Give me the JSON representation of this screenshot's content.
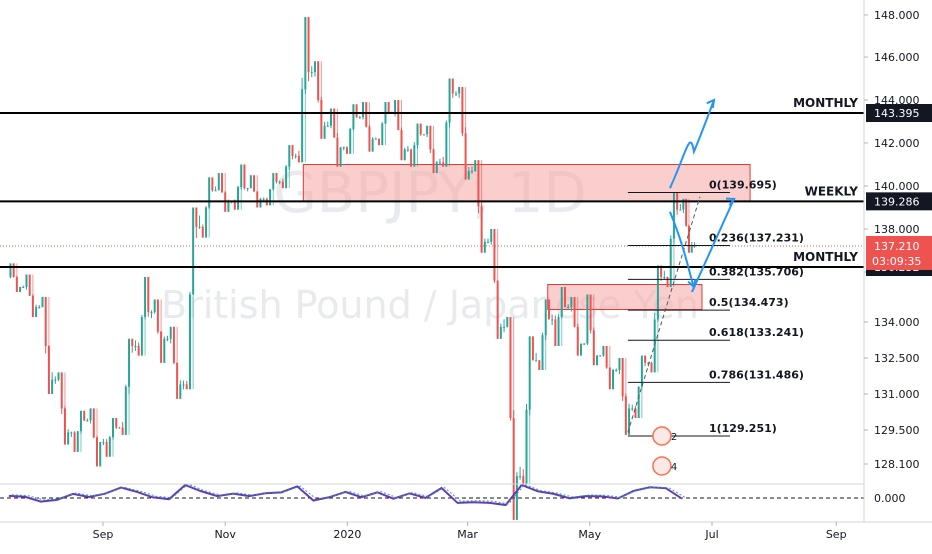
{
  "watermark": {
    "symbol": "GBPJPY, 1D",
    "name": "British Pound / Japanese Yen"
  },
  "chart_data": {
    "type": "candlestick",
    "price_axis": {
      "ticks": [
        "148.000",
        "146.000",
        "144.000",
        "142.000",
        "140.000",
        "138.000",
        "136.000",
        "134.000",
        "132.500",
        "131.000",
        "129.500",
        "128.100"
      ],
      "tick_values": [
        148.0,
        146.0,
        144.0,
        142.0,
        140.0,
        138.0,
        136.0,
        134.0,
        132.5,
        131.0,
        129.5,
        128.1
      ]
    },
    "time_axis": {
      "labels": [
        "Sep",
        "Nov",
        "2020",
        "Mar",
        "May",
        "Jul",
        "Sep"
      ],
      "label_dates": [
        "2019-09-01",
        "2019-11-01",
        "2020-01-01",
        "2020-03-01",
        "2020-05-01",
        "2020-07-01",
        "2020-09-01"
      ]
    },
    "price_badges": [
      {
        "text": "143.395",
        "value": 143.395,
        "style": "dark"
      },
      {
        "text": "139.286",
        "value": 139.286,
        "style": "dark"
      },
      {
        "text": "136.232",
        "value": 136.232,
        "style": "dark"
      }
    ],
    "current_price": {
      "text": "137.210",
      "value": 137.21,
      "countdown": "03:09:35",
      "color": "#ef5350"
    },
    "horizontal_levels": [
      {
        "label": "MONTHLY",
        "value": 143.395
      },
      {
        "label": "WEEKLY",
        "value": 139.286
      },
      {
        "label": "MONTHLY",
        "value": 136.232
      }
    ],
    "zones": [
      {
        "from": 139.3,
        "to": 141.0,
        "start_date": "2019-12-10",
        "end_date": "2020-07-20"
      },
      {
        "from": 134.5,
        "to": 135.5,
        "start_date": "2020-04-10",
        "end_date": "2020-06-26"
      }
    ],
    "fibonacci": {
      "start_date": "2020-05-20",
      "end_date": "2020-06-25",
      "levels": [
        {
          "label": "0(139.695)",
          "value": 139.695
        },
        {
          "label": "0.236(137.231)",
          "value": 137.231
        },
        {
          "label": "0.382(135.706)",
          "value": 135.706
        },
        {
          "label": "0.5(134.473)",
          "value": 134.473
        },
        {
          "label": "0.618(133.241)",
          "value": 133.241
        },
        {
          "label": "0.786(131.486)",
          "value": 131.486
        },
        {
          "label": "1(129.251)",
          "value": 129.251
        }
      ]
    },
    "trendline": {
      "from_date": "2020-05-20",
      "from_value": 129.4,
      "to_date": "2020-06-25",
      "to_value": 139.5
    },
    "projection_paths_count": 2,
    "event_markers": [
      {
        "label": "2",
        "date": "2020-06-06"
      },
      {
        "label": "4",
        "date": "2020-06-06"
      }
    ],
    "oscillator": {
      "tick": "0.000",
      "zero_line": "dashed"
    },
    "colors": {
      "up": "#26a69a",
      "down": "#ef5350",
      "level_line": "#000000",
      "zone_fill": "#f8a5a5",
      "zone_border": "#e53935",
      "arrow": "#2196f3",
      "badge_dark": "#131722"
    },
    "candles": [
      {
        "d": "2019-07-16",
        "o": 135.8,
        "h": 136.4,
        "l": 135.2,
        "c": 135.4
      },
      {
        "d": "2019-07-24",
        "o": 135.4,
        "h": 135.9,
        "l": 134.2,
        "c": 134.6
      },
      {
        "d": "2019-08-01",
        "o": 134.6,
        "h": 135.0,
        "l": 131.0,
        "c": 131.6
      },
      {
        "d": "2019-08-09",
        "o": 131.6,
        "h": 131.9,
        "l": 128.9,
        "c": 129.4
      },
      {
        "d": "2019-08-17",
        "o": 129.4,
        "h": 130.3,
        "l": 128.6,
        "c": 129.9
      },
      {
        "d": "2019-08-25",
        "o": 129.9,
        "h": 130.4,
        "l": 128.0,
        "c": 129.0
      },
      {
        "d": "2019-09-02",
        "o": 129.0,
        "h": 130.0,
        "l": 128.4,
        "c": 129.6
      },
      {
        "d": "2019-09-10",
        "o": 129.6,
        "h": 133.3,
        "l": 129.3,
        "c": 133.0
      },
      {
        "d": "2019-09-18",
        "o": 133.0,
        "h": 135.8,
        "l": 132.6,
        "c": 134.4
      },
      {
        "d": "2019-09-26",
        "o": 134.4,
        "h": 134.9,
        "l": 132.3,
        "c": 133.3
      },
      {
        "d": "2019-10-04",
        "o": 133.3,
        "h": 133.8,
        "l": 130.8,
        "c": 131.4
      },
      {
        "d": "2019-10-12",
        "o": 131.4,
        "h": 139.0,
        "l": 131.2,
        "c": 138.1
      },
      {
        "d": "2019-10-20",
        "o": 138.1,
        "h": 140.4,
        "l": 137.6,
        "c": 139.8
      },
      {
        "d": "2019-10-28",
        "o": 139.8,
        "h": 140.6,
        "l": 138.8,
        "c": 139.3
      },
      {
        "d": "2019-11-05",
        "o": 139.3,
        "h": 141.0,
        "l": 138.9,
        "c": 139.9
      },
      {
        "d": "2019-11-13",
        "o": 139.9,
        "h": 140.5,
        "l": 139.0,
        "c": 139.4
      },
      {
        "d": "2019-11-21",
        "o": 139.4,
        "h": 140.6,
        "l": 139.1,
        "c": 140.2
      },
      {
        "d": "2019-11-29",
        "o": 140.2,
        "h": 141.9,
        "l": 139.9,
        "c": 141.4
      },
      {
        "d": "2019-12-07",
        "o": 141.4,
        "h": 147.9,
        "l": 141.1,
        "c": 145.3
      },
      {
        "d": "2019-12-15",
        "o": 145.3,
        "h": 145.8,
        "l": 142.2,
        "c": 142.8
      },
      {
        "d": "2019-12-23",
        "o": 142.8,
        "h": 143.6,
        "l": 140.9,
        "c": 141.8
      },
      {
        "d": "2019-12-31",
        "o": 141.8,
        "h": 143.8,
        "l": 141.5,
        "c": 143.2
      },
      {
        "d": "2020-01-08",
        "o": 143.2,
        "h": 143.9,
        "l": 141.6,
        "c": 142.2
      },
      {
        "d": "2020-01-16",
        "o": 142.2,
        "h": 143.9,
        "l": 141.9,
        "c": 143.4
      },
      {
        "d": "2020-01-24",
        "o": 143.4,
        "h": 144.0,
        "l": 141.2,
        "c": 141.7
      },
      {
        "d": "2020-02-01",
        "o": 141.7,
        "h": 142.9,
        "l": 140.9,
        "c": 142.4
      },
      {
        "d": "2020-02-09",
        "o": 142.4,
        "h": 142.8,
        "l": 140.6,
        "c": 141.1
      },
      {
        "d": "2020-02-17",
        "o": 141.1,
        "h": 145.0,
        "l": 140.9,
        "c": 144.3
      },
      {
        "d": "2020-02-25",
        "o": 144.3,
        "h": 144.6,
        "l": 140.3,
        "c": 140.7
      },
      {
        "d": "2020-03-04",
        "o": 140.7,
        "h": 141.2,
        "l": 136.9,
        "c": 137.4
      },
      {
        "d": "2020-03-12",
        "o": 137.4,
        "h": 138.0,
        "l": 133.3,
        "c": 133.8
      },
      {
        "d": "2020-03-20",
        "o": 133.8,
        "h": 134.2,
        "l": 125.8,
        "c": 127.6
      },
      {
        "d": "2020-03-28",
        "o": 127.6,
        "h": 133.4,
        "l": 127.3,
        "c": 132.4
      },
      {
        "d": "2020-04-05",
        "o": 132.4,
        "h": 134.9,
        "l": 132.0,
        "c": 134.1
      },
      {
        "d": "2020-04-13",
        "o": 134.1,
        "h": 135.4,
        "l": 133.0,
        "c": 134.6
      },
      {
        "d": "2020-04-21",
        "o": 134.6,
        "h": 135.0,
        "l": 132.6,
        "c": 133.1
      },
      {
        "d": "2020-04-29",
        "o": 133.1,
        "h": 135.1,
        "l": 132.2,
        "c": 132.6
      },
      {
        "d": "2020-05-07",
        "o": 132.6,
        "h": 133.0,
        "l": 131.2,
        "c": 132.0
      },
      {
        "d": "2020-05-15",
        "o": 132.0,
        "h": 132.5,
        "l": 129.3,
        "c": 130.4
      },
      {
        "d": "2020-05-23",
        "o": 130.4,
        "h": 132.6,
        "l": 130.0,
        "c": 132.3
      },
      {
        "d": "2020-05-31",
        "o": 132.3,
        "h": 136.3,
        "l": 131.9,
        "c": 135.8
      },
      {
        "d": "2020-06-08",
        "o": 135.8,
        "h": 139.7,
        "l": 135.4,
        "c": 138.9
      },
      {
        "d": "2020-06-16",
        "o": 138.9,
        "h": 139.4,
        "l": 136.9,
        "c": 137.21
      }
    ]
  }
}
